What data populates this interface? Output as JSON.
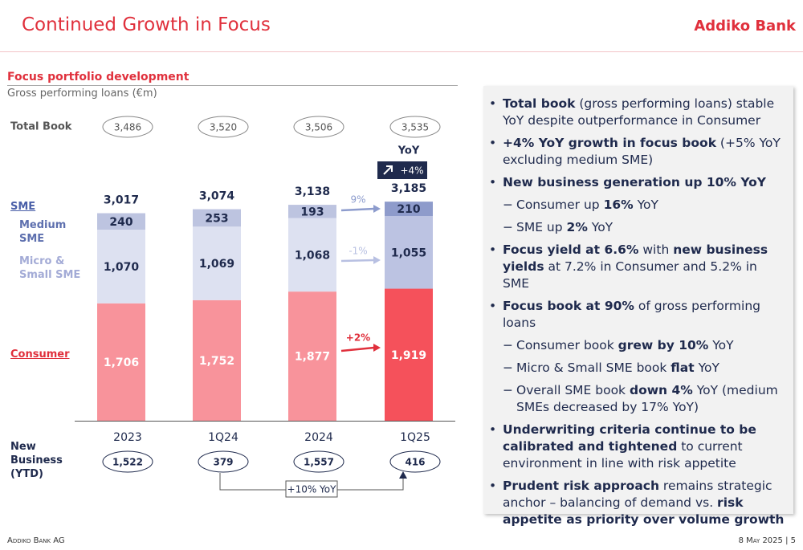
{
  "header": {
    "title": "Continued Growth in Focus",
    "brand": "Addiko Bank"
  },
  "chart_data": {
    "type": "bar",
    "stacked": true,
    "title": "Focus portfolio development",
    "subtitle": "Gross performing loans (€m)",
    "categories": [
      "2023",
      "1Q24",
      "2024",
      "1Q25"
    ],
    "legend_group": "SME",
    "series": [
      {
        "name": "Consumer",
        "color": "#e0303c",
        "colors": [
          "#f8939b",
          "#f8939b",
          "#f8939b",
          "#f5515b"
        ],
        "label_color": "#ffffff",
        "values": [
          1706,
          1752,
          1877,
          1919
        ],
        "value_labels": [
          "1,706",
          "1,752",
          "1,877",
          "1,919"
        ]
      },
      {
        "name": "Micro & Small SME",
        "color": "#a3abd6",
        "colors": [
          "#dde1f1",
          "#dde1f1",
          "#dde1f1",
          "#bcc3e2"
        ],
        "label_color": "#1f2a4d",
        "values": [
          1070,
          1069,
          1068,
          1055
        ],
        "value_labels": [
          "1,070",
          "1,069",
          "1,068",
          "1,055"
        ]
      },
      {
        "name": "Medium SME",
        "color": "#5d6fae",
        "colors": [
          "#bdc4e0",
          "#bdc4e0",
          "#bdc4e0",
          "#8e9bcb"
        ],
        "label_color": "#1f2a4d",
        "values": [
          240,
          253,
          193,
          210
        ]
      }
    ],
    "totals": {
      "values": [
        3017,
        3074,
        3138,
        3185
      ],
      "value_labels": [
        "3,017",
        "3,074",
        "3,138",
        "3,185"
      ]
    },
    "total_book": {
      "label": "Total Book",
      "values": [
        3486,
        3520,
        3506,
        3535
      ],
      "value_labels": [
        "3,486",
        "3,520",
        "3,506",
        "3,535"
      ]
    },
    "new_business": {
      "label": "New Business (YTD)",
      "values": [
        1522,
        379,
        1557,
        416
      ],
      "value_labels": [
        "1,522",
        "379",
        "1,557",
        "416"
      ],
      "growth": "+10% YoY"
    },
    "yoy": {
      "label": "YoY",
      "total": "+4%"
    },
    "annotations": [
      {
        "text": "9%",
        "color": "#8d9ccd"
      },
      {
        "text": "-1%",
        "color": "#b8c0e2"
      },
      {
        "text": "+2%",
        "color": "#e0303c"
      }
    ]
  },
  "bullets": [
    {
      "level": 1,
      "parts": [
        {
          "text": "Total book",
          "bold": true
        },
        {
          "text": " (gross performing loans) stable YoY despite outperformance in Consumer"
        }
      ]
    },
    {
      "level": 1,
      "parts": [
        {
          "text": "+4% YoY growth in focus book",
          "bold": true
        },
        {
          "text": " (+5% YoY excluding medium SME)"
        }
      ]
    },
    {
      "level": 1,
      "parts": [
        {
          "text": "New business generation up 10% YoY",
          "bold": true
        }
      ]
    },
    {
      "level": 2,
      "parts": [
        {
          "text": "Consumer up "
        },
        {
          "text": "16%",
          "bold": true
        },
        {
          "text": " YoY"
        }
      ]
    },
    {
      "level": 2,
      "parts": [
        {
          "text": "SME up "
        },
        {
          "text": "2%",
          "bold": true
        },
        {
          "text": " YoY"
        }
      ]
    },
    {
      "level": 1,
      "parts": [
        {
          "text": "Focus yield at 6.6%",
          "bold": true
        },
        {
          "text": " with "
        },
        {
          "text": "new business yields",
          "bold": true
        },
        {
          "text": " at 7.2% in Consumer and 5.2% in SME"
        }
      ]
    },
    {
      "level": 1,
      "parts": [
        {
          "text": "Focus book at 90%",
          "bold": true
        },
        {
          "text": " of gross performing loans"
        }
      ]
    },
    {
      "level": 2,
      "parts": [
        {
          "text": "Consumer book "
        },
        {
          "text": "grew by 10%",
          "bold": true
        },
        {
          "text": " YoY"
        }
      ]
    },
    {
      "level": 2,
      "parts": [
        {
          "text": "Micro & Small SME book "
        },
        {
          "text": "flat",
          "bold": true
        },
        {
          "text": " YoY"
        }
      ]
    },
    {
      "level": 2,
      "parts": [
        {
          "text": "Overall SME book "
        },
        {
          "text": "down 4%",
          "bold": true
        },
        {
          "text": " YoY (medium SMEs decreased by 17% YoY)"
        }
      ]
    },
    {
      "level": 1,
      "parts": [
        {
          "text": "Underwriting criteria continue to be calibrated and tightened",
          "bold": true
        },
        {
          "text": " to current environment in line with risk appetite"
        }
      ]
    },
    {
      "level": 1,
      "parts": [
        {
          "text": "Prudent risk approach",
          "bold": true
        },
        {
          "text": " remains strategic anchor – balancing of demand vs. "
        },
        {
          "text": "risk appetite as priority over volume growth",
          "bold": true
        }
      ]
    }
  ],
  "footer": {
    "left": "Addiko Bank AG",
    "right": "8 May 2025 | 5"
  }
}
